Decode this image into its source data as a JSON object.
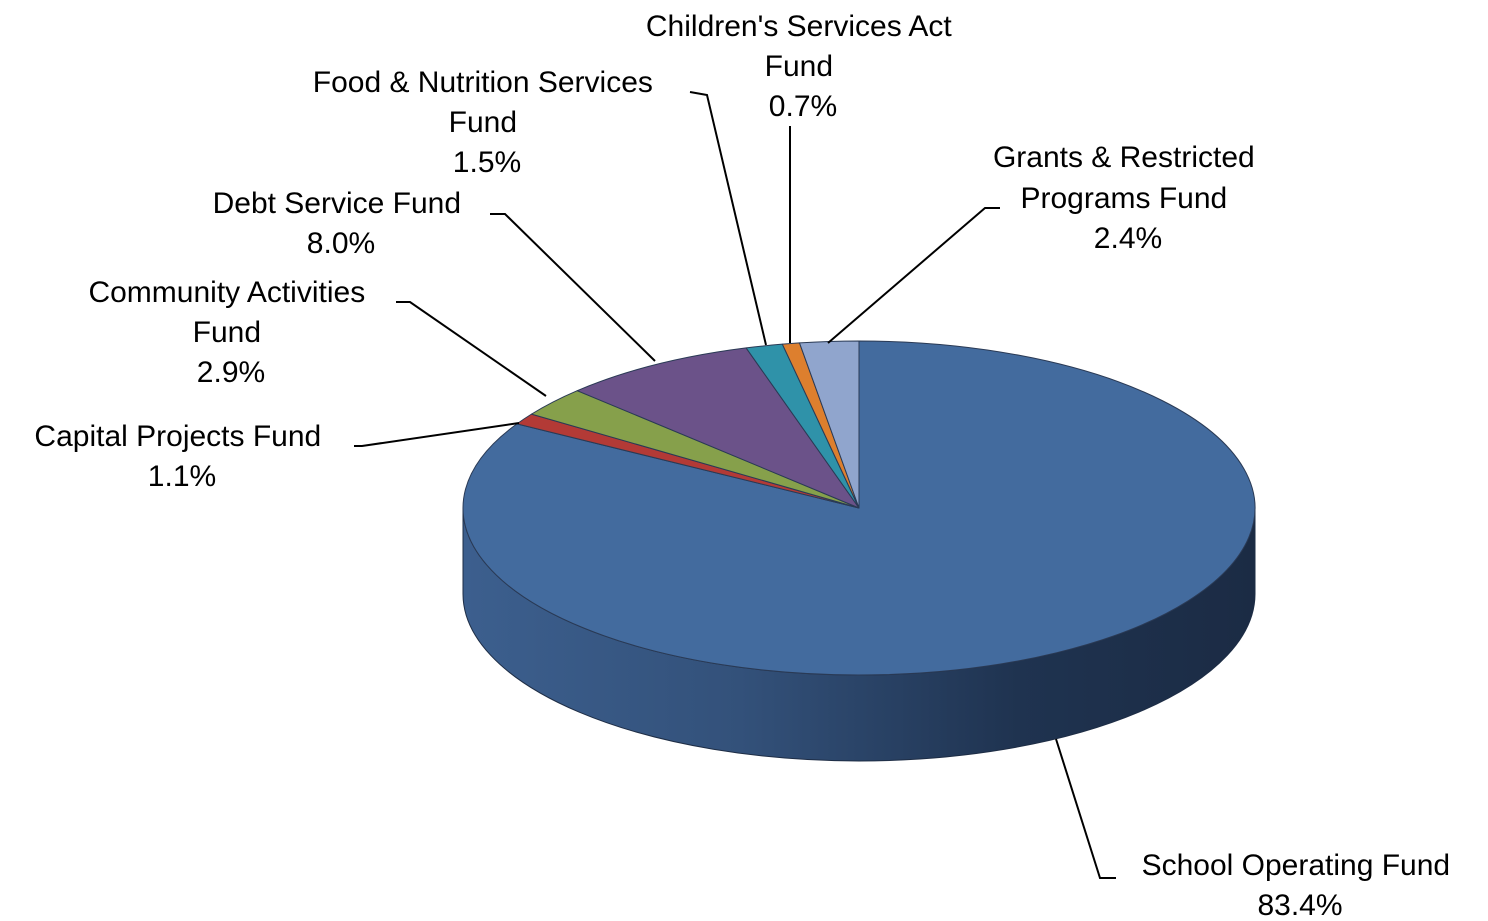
{
  "chart_data": {
    "type": "pie",
    "title": "",
    "three_d": true,
    "legend": "none",
    "slices": [
      {
        "label": "School Operating Fund",
        "pct_label": "83.4%",
        "value": 83.4,
        "color": "#436b9e"
      },
      {
        "label": "Capital Projects Fund",
        "pct_label": "1.1%",
        "value": 1.1,
        "color": "#b33a36"
      },
      {
        "label": "Community Activities Fund",
        "pct_label": "2.9%",
        "value": 2.9,
        "color": "#86a04b"
      },
      {
        "label": "Debt Service Fund",
        "pct_label": "8.0%",
        "value": 8.0,
        "color": "#6b5289"
      },
      {
        "label": "Food & Nutrition Services Fund",
        "pct_label": "1.5%",
        "value": 1.5,
        "color": "#2f92a9"
      },
      {
        "label": "Children's Services Act Fund",
        "pct_label": "0.7%",
        "value": 0.7,
        "color": "#dd7f2e"
      },
      {
        "label": "Grants & Restricted Programs Fund",
        "pct_label": "2.4%",
        "value": 2.4,
        "color": "#90a5cd"
      }
    ]
  }
}
